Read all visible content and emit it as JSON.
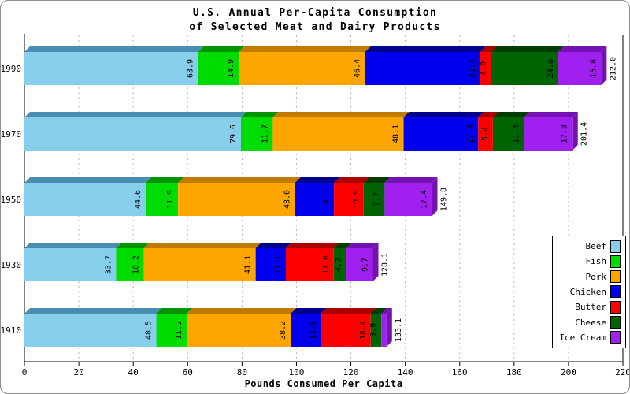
{
  "chart_data": {
    "type": "bar",
    "orientation": "horizontal-stacked-3d",
    "title_line1": "U.S. Annual Per-Capita Consumption",
    "title_line2": "of Selected Meat and Dairy Products",
    "xlabel": "Pounds Consumed Per Capita",
    "xlim": [
      0,
      220
    ],
    "xticks": [
      0,
      20,
      40,
      60,
      80,
      100,
      120,
      140,
      160,
      180,
      200,
      220
    ],
    "grid": "dashed-vertical",
    "legend_position": "right-bottom",
    "categories": [
      "1990",
      "1970",
      "1950",
      "1930",
      "1910"
    ],
    "series": [
      {
        "name": "Beef",
        "color": "#87CEEB",
        "dark": "#4A8DB0",
        "values": [
          63.9,
          79.6,
          44.6,
          33.7,
          48.5
        ]
      },
      {
        "name": "Fish",
        "color": "#00DB00",
        "dark": "#009400",
        "values": [
          14.9,
          11.7,
          11.9,
          10.2,
          11.2
        ]
      },
      {
        "name": "Pork",
        "color": "#FFA500",
        "dark": "#BF7C00",
        "values": [
          46.4,
          48.1,
          43.0,
          41.1,
          38.2
        ]
      },
      {
        "name": "Chicken",
        "color": "#0000EE",
        "dark": "#00008B",
        "values": [
          42.4,
          27.4,
          14.3,
          11.1,
          11.0
        ]
      },
      {
        "name": "Butter",
        "color": "#FF0000",
        "dark": "#AA0000",
        "values": [
          4.0,
          5.4,
          10.9,
          17.6,
          18.4
        ]
      },
      {
        "name": "Cheese",
        "color": "#006400",
        "dark": "#003C00",
        "values": [
          24.6,
          11.4,
          7.7,
          4.7,
          3.9
        ]
      },
      {
        "name": "Ice Cream",
        "color": "#A020F0",
        "dark": "#7312B0",
        "values": [
          15.8,
          17.8,
          17.4,
          9.7,
          1.9
        ]
      }
    ],
    "totals": [
      "212.0",
      "201.4",
      "149.8",
      "128.1",
      "133.1"
    ],
    "colors": {
      "axis": "#000000",
      "gridline": "#b9b9b9",
      "label_text": "#000000",
      "frame_border": "#8c8c8c"
    }
  }
}
